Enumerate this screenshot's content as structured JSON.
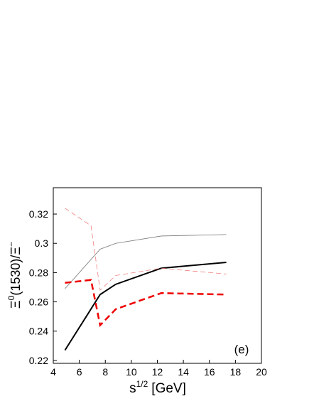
{
  "chart_data": {
    "type": "line",
    "xlabel": [
      "s",
      "1/2",
      "[GeV]"
    ],
    "ylabel": [
      "Ξ",
      "0",
      "(1530)/Ξ",
      "−"
    ],
    "annotation": "(e)",
    "xlim": [
      4,
      20
    ],
    "xticks": [
      4,
      6,
      8,
      10,
      12,
      14,
      16,
      18,
      20
    ],
    "ylim": [
      0.218,
      0.338
    ],
    "yticks": [
      0.22,
      0.24,
      0.26,
      0.28,
      0.3,
      0.32
    ],
    "series": [
      {
        "color": "#000000",
        "linewidth": 2,
        "style": "solid",
        "x": [
          4.9,
          7.6,
          8.8,
          12.3,
          17.3
        ],
        "values": [
          0.227,
          0.265,
          0.272,
          0.283,
          0.287
        ]
      },
      {
        "color": "#777777",
        "linewidth": 0.8,
        "style": "solid",
        "x": [
          4.9,
          7.6,
          8.8,
          12.3,
          17.3
        ],
        "values": [
          0.269,
          0.296,
          0.3,
          0.305,
          0.306
        ]
      },
      {
        "color": "#ee0000",
        "linewidth": 2.5,
        "style": "dashed",
        "x": [
          4.9,
          6.9,
          7.6,
          8.8,
          12.3,
          17.3
        ],
        "values": [
          0.273,
          0.275,
          0.244,
          0.255,
          0.266,
          0.265
        ]
      },
      {
        "color": "#f08080",
        "linewidth": 0.8,
        "style": "dashed",
        "x": [
          4.9,
          6.9,
          7.6,
          8.8,
          12.3,
          17.3
        ],
        "values": [
          0.324,
          0.312,
          0.268,
          0.278,
          0.283,
          0.279
        ]
      }
    ]
  }
}
